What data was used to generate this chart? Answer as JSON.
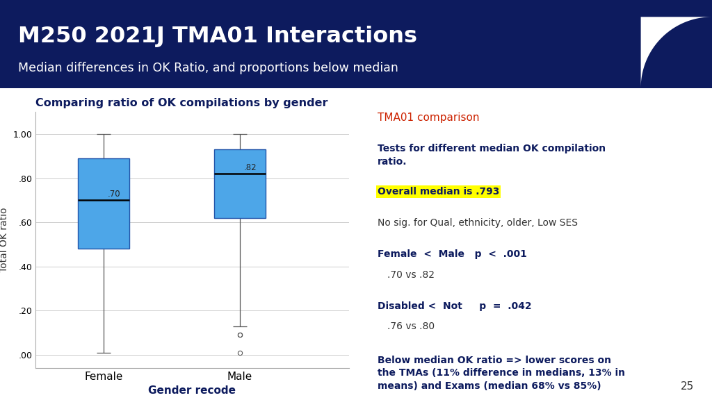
{
  "title_main": "M250 2021J TMA01 Interactions",
  "title_sub": "Median differences in OK Ratio, and proportions below median",
  "header_bg": "#0d1b5e",
  "body_bg": "#ffffff",
  "chart_title": "Comparing ratio of OK compilations by gender",
  "chart_xlabel": "Gender recode",
  "chart_ylabel": "Total OK ratio",
  "box_color": "#4da6e8",
  "box_edge_color": "#2255aa",
  "median_color": "#000000",
  "female": {
    "whisker_low": 0.01,
    "q1": 0.48,
    "median": 0.7,
    "q3": 0.89,
    "whisker_high": 1.0,
    "outliers": []
  },
  "male": {
    "whisker_low": 0.13,
    "q1": 0.62,
    "median": 0.82,
    "q3": 0.93,
    "whisker_high": 1.0,
    "outliers": [
      0.09,
      0.09,
      0.01
    ]
  },
  "yticks": [
    0.0,
    0.2,
    0.4,
    0.6,
    0.8,
    1.0
  ],
  "ytick_labels": [
    ".00",
    ".20",
    ".40",
    ".60",
    ".80",
    "1.00"
  ],
  "tma_label": "TMA01 comparison",
  "tma_label_color": "#cc2200",
  "text_color": "#0d1b5e",
  "page_number": "25"
}
